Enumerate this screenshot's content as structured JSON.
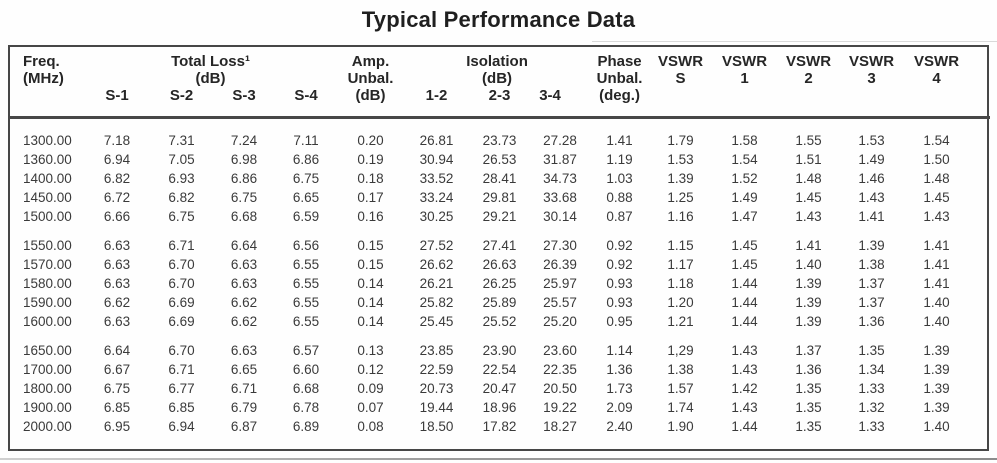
{
  "title": "Typical Performance Data",
  "table": {
    "headers": {
      "freq": [
        "Freq.",
        "(MHz)"
      ],
      "total_loss": [
        "Total Loss¹",
        "(dB)"
      ],
      "total_loss_subs": [
        "S-1",
        "S-2",
        "S-3",
        "S-4"
      ],
      "amp_unbal": [
        "Amp.",
        "Unbal.",
        "(dB)"
      ],
      "isolation": [
        "Isolation",
        "(dB)"
      ],
      "isolation_subs": [
        "1-2",
        "2-3",
        "3-4"
      ],
      "phase_unbal": [
        "Phase",
        "Unbal.",
        "(deg.)"
      ],
      "vswr_cols": [
        [
          "VSWR",
          "S"
        ],
        [
          "VSWR",
          "1"
        ],
        [
          "VSWR",
          "2"
        ],
        [
          "VSWR",
          "3"
        ],
        [
          "VSWR",
          "4"
        ]
      ]
    },
    "groups": [
      [
        [
          "1300.00",
          "7.18",
          "7.31",
          "7.24",
          "7.11",
          "0.20",
          "26.81",
          "23.73",
          "27.28",
          "1.41",
          "1.79",
          "1.58",
          "1.55",
          "1.53",
          "1.54"
        ],
        [
          "1360.00",
          "6.94",
          "7.05",
          "6.98",
          "6.86",
          "0.19",
          "30.94",
          "26.53",
          "31.87",
          "1.19",
          "1.53",
          "1.54",
          "1.51",
          "1.49",
          "1.50"
        ],
        [
          "1400.00",
          "6.82",
          "6.93",
          "6.86",
          "6.75",
          "0.18",
          "33.52",
          "28.41",
          "34.73",
          "1.03",
          "1.39",
          "1.52",
          "1.48",
          "1.46",
          "1.48"
        ],
        [
          "1450.00",
          "6.72",
          "6.82",
          "6.75",
          "6.65",
          "0.17",
          "33.24",
          "29.81",
          "33.68",
          "0.88",
          "1.25",
          "1.49",
          "1.45",
          "1.43",
          "1.45"
        ],
        [
          "1500.00",
          "6.66",
          "6.75",
          "6.68",
          "6.59",
          "0.16",
          "30.25",
          "29.21",
          "30.14",
          "0.87",
          "1.16",
          "1.47",
          "1.43",
          "1.41",
          "1.43"
        ]
      ],
      [
        [
          "1550.00",
          "6.63",
          "6.71",
          "6.64",
          "6.56",
          "0.15",
          "27.52",
          "27.41",
          "27.30",
          "0.92",
          "1.15",
          "1.45",
          "1.41",
          "1.39",
          "1.41"
        ],
        [
          "1570.00",
          "6.63",
          "6.70",
          "6.63",
          "6.55",
          "0.15",
          "26.62",
          "26.63",
          "26.39",
          "0.92",
          "1.17",
          "1.45",
          "1.40",
          "1.38",
          "1.41"
        ],
        [
          "1580.00",
          "6.63",
          "6.70",
          "6.63",
          "6.55",
          "0.14",
          "26.21",
          "26.25",
          "25.97",
          "0.93",
          "1.18",
          "1.44",
          "1.39",
          "1.37",
          "1.41"
        ],
        [
          "1590.00",
          "6.62",
          "6.69",
          "6.62",
          "6.55",
          "0.14",
          "25.82",
          "25.89",
          "25.57",
          "0.93",
          "1.20",
          "1.44",
          "1.39",
          "1.37",
          "1.40"
        ],
        [
          "1600.00",
          "6.63",
          "6.69",
          "6.62",
          "6.55",
          "0.14",
          "25.45",
          "25.52",
          "25.20",
          "0.95",
          "1.21",
          "1.44",
          "1.39",
          "1.36",
          "1.40"
        ]
      ],
      [
        [
          "1650.00",
          "6.64",
          "6.70",
          "6.63",
          "6.57",
          "0.13",
          "23.85",
          "23.90",
          "23.60",
          "1.14",
          "1,29",
          "1.43",
          "1.37",
          "1.35",
          "1.39"
        ],
        [
          "1700.00",
          "6.67",
          "6.71",
          "6.65",
          "6.60",
          "0.12",
          "22.59",
          "22.54",
          "22.35",
          "1.36",
          "1.38",
          "1.43",
          "1.36",
          "1.34",
          "1.39"
        ],
        [
          "1800.00",
          "6.75",
          "6.77",
          "6.71",
          "6.68",
          "0.09",
          "20.73",
          "20.47",
          "20.50",
          "1.73",
          "1.57",
          "1.42",
          "1.35",
          "1.33",
          "1.39"
        ],
        [
          "1900.00",
          "6.85",
          "6.85",
          "6.79",
          "6.78",
          "0.07",
          "19.44",
          "18.96",
          "19.22",
          "2.09",
          "1.74",
          "1.43",
          "1.35",
          "1.32",
          "1.39"
        ],
        [
          "2000.00",
          "6.95",
          "6.94",
          "6.87",
          "6.89",
          "0.08",
          "18.50",
          "17.82",
          "18.27",
          "2.40",
          "1.90",
          "1.44",
          "1.35",
          "1.33",
          "1.40"
        ]
      ]
    ]
  },
  "colors": {
    "border": "#474747",
    "text": "#3a3a3a",
    "title": "#1f1f1f"
  }
}
